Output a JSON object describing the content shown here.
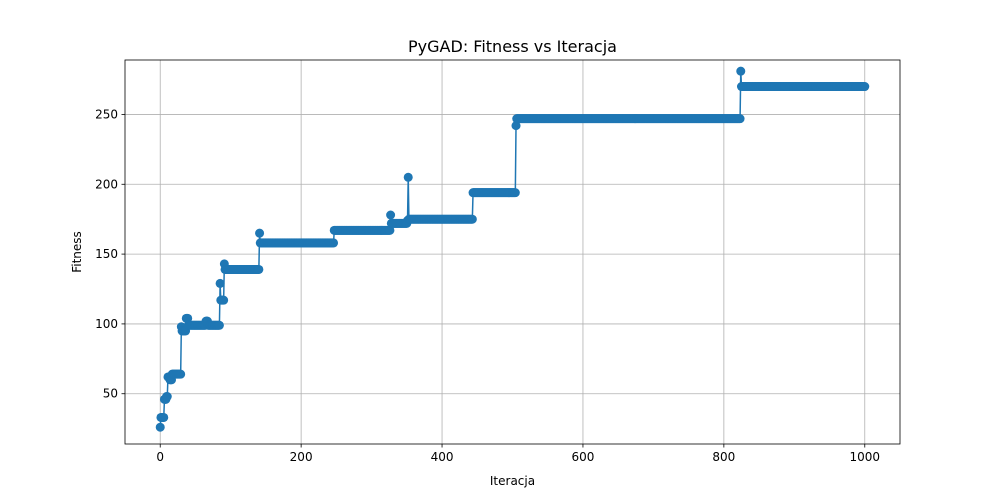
{
  "chart_data": {
    "type": "line",
    "title": "PyGAD: Fitness vs Iteracja",
    "xlabel": "Iteracja",
    "ylabel": "Fitness",
    "xlim": [
      -50,
      1050
    ],
    "ylim": [
      14,
      289
    ],
    "xticks": [
      0,
      200,
      400,
      600,
      800,
      1000
    ],
    "yticks": [
      50,
      100,
      150,
      200,
      250
    ],
    "grid": true,
    "marker": "circle",
    "color": "#1f77b4",
    "series": [
      {
        "steps": [
          [
            0,
            26
          ],
          [
            1,
            33
          ],
          [
            5,
            33
          ],
          [
            6,
            46
          ],
          [
            9,
            48
          ],
          [
            10,
            48
          ],
          [
            11,
            62
          ],
          [
            14,
            60
          ],
          [
            17,
            64
          ],
          [
            29,
            64
          ],
          [
            30,
            98
          ],
          [
            31,
            95
          ],
          [
            37,
            104
          ],
          [
            40,
            99
          ],
          [
            63,
            99
          ],
          [
            65,
            102
          ],
          [
            68,
            99
          ],
          [
            84,
            99
          ],
          [
            85,
            129
          ],
          [
            86,
            117
          ],
          [
            90,
            117
          ],
          [
            91,
            143
          ],
          [
            92,
            139
          ],
          [
            140,
            139
          ],
          [
            141,
            165
          ],
          [
            142,
            158
          ],
          [
            246,
            158
          ],
          [
            247,
            167
          ],
          [
            326,
            167
          ],
          [
            327,
            178
          ],
          [
            328,
            172
          ],
          [
            350,
            172
          ],
          [
            351,
            174
          ],
          [
            352,
            205
          ],
          [
            353,
            175
          ],
          [
            443,
            175
          ],
          [
            444,
            194
          ],
          [
            504,
            194
          ],
          [
            505,
            242
          ],
          [
            506,
            247
          ],
          [
            823,
            247
          ],
          [
            824,
            281
          ],
          [
            825,
            270
          ],
          [
            1000,
            270
          ]
        ]
      }
    ]
  }
}
